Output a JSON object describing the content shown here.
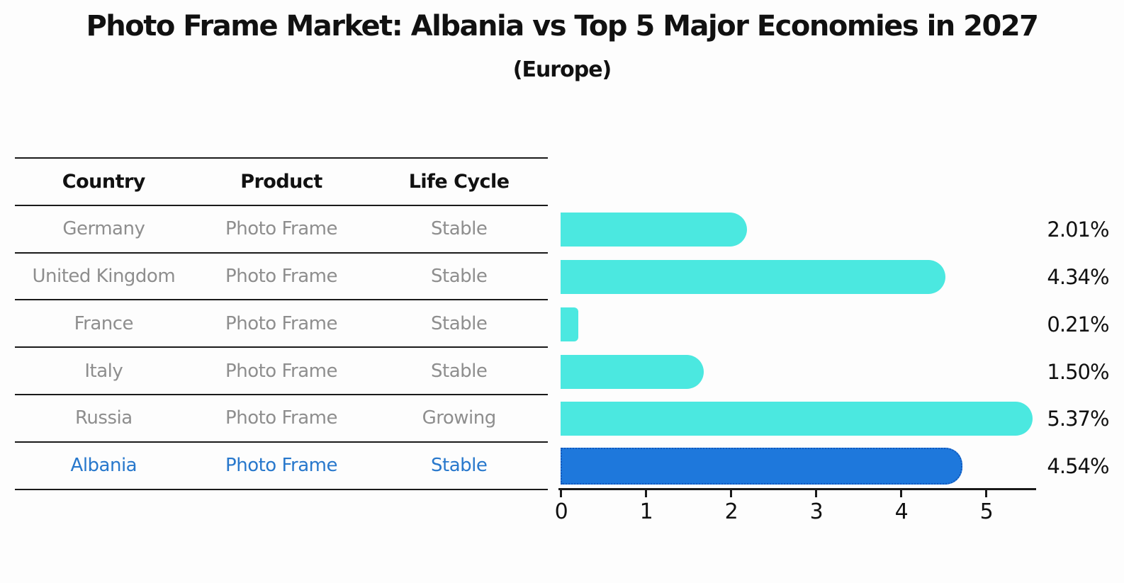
{
  "title": "Photo Frame Market: Albania vs Top 5 Major Economies in 2027",
  "subtitle": "(Europe)",
  "table": {
    "columns": [
      "Country",
      "Product",
      "Life Cycle"
    ],
    "rows": [
      {
        "country": "Germany",
        "product": "Photo Frame",
        "life_cycle": "Stable",
        "highlighted": false
      },
      {
        "country": "United Kingdom",
        "product": "Photo Frame",
        "life_cycle": "Stable",
        "highlighted": false
      },
      {
        "country": "France",
        "product": "Photo Frame",
        "life_cycle": "Stable",
        "highlighted": false
      },
      {
        "country": "Italy",
        "product": "Photo Frame",
        "life_cycle": "Stable",
        "highlighted": false
      },
      {
        "country": "Russia",
        "product": "Photo Frame",
        "life_cycle": "Growing",
        "highlighted": false
      },
      {
        "country": "Albania",
        "product": "Photo Frame",
        "life_cycle": "Stable",
        "highlighted": true
      }
    ]
  },
  "chart_data": {
    "type": "bar",
    "orientation": "horizontal",
    "title": "Photo Frame Market: Albania vs Top 5 Major Economies in 2027",
    "subtitle": "(Europe)",
    "categories": [
      "Germany",
      "United Kingdom",
      "France",
      "Italy",
      "Russia",
      "Albania"
    ],
    "values": [
      2.01,
      4.34,
      0.21,
      1.5,
      5.37,
      4.54
    ],
    "labels": [
      "2.01%",
      "4.34%",
      "0.21%",
      "1.50%",
      "5.37%",
      "4.54%"
    ],
    "x_ticks": [
      0,
      1,
      2,
      3,
      4,
      5
    ],
    "x_tick_labels": [
      "0",
      "1",
      "2",
      "3",
      "4",
      "5"
    ],
    "xlim": [
      0,
      5.6
    ],
    "grid": false,
    "legend": false,
    "bar_color": "#4BE8E0",
    "highlight_index": 5,
    "highlight_color": "#1E78DC",
    "highlight_border_color": "#1258BC"
  },
  "colors": {
    "background": "#fdfdfd",
    "text": "#111111",
    "table_text": "#8e8e8e",
    "highlight_text": "#2878CC",
    "line": "#1a1a1a"
  }
}
